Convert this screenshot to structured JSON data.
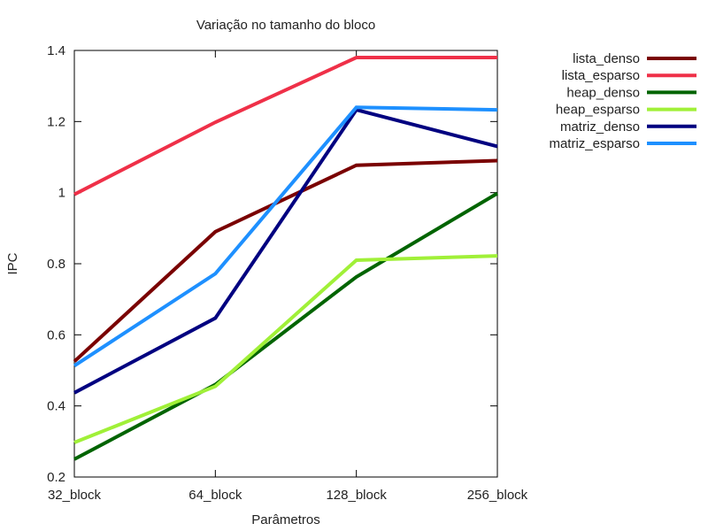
{
  "chart_data": {
    "type": "line",
    "title": "Variação no tamanho do bloco",
    "xlabel": "Parâmetros",
    "ylabel": "IPC",
    "categories": [
      "32_block",
      "64_block",
      "128_block",
      "256_block"
    ],
    "ylim": [
      0.2,
      1.4
    ],
    "yticks": [
      "0.2",
      "0.4",
      "0.6",
      "0.8",
      "1",
      "1.2",
      "1.4"
    ],
    "grid": false,
    "legend_position": "top-right outside",
    "series": [
      {
        "name": "lista_denso",
        "color": "#7a0000",
        "values": [
          0.525,
          0.89,
          1.077,
          1.09
        ]
      },
      {
        "name": "lista_esparso",
        "color": "#ef3048",
        "values": [
          0.995,
          1.198,
          1.38,
          1.38
        ]
      },
      {
        "name": "heap_denso",
        "color": "#006400",
        "values": [
          0.25,
          0.46,
          0.763,
          0.998
        ]
      },
      {
        "name": "heap_esparso",
        "color": "#a0f038",
        "values": [
          0.297,
          0.455,
          0.81,
          0.822
        ]
      },
      {
        "name": "matriz_denso",
        "color": "#000080",
        "values": [
          0.437,
          0.647,
          1.233,
          1.13
        ]
      },
      {
        "name": "matriz_esparso",
        "color": "#1e90ff",
        "values": [
          0.513,
          0.772,
          1.24,
          1.233
        ]
      }
    ]
  }
}
